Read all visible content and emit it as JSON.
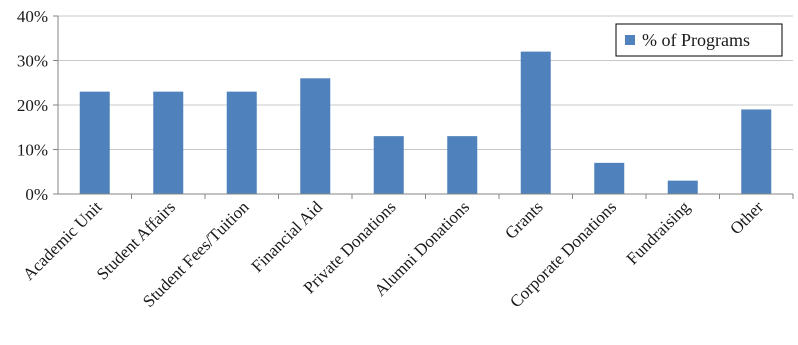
{
  "chart_data": {
    "type": "bar",
    "title": "",
    "xlabel": "",
    "ylabel": "",
    "categories": [
      "Academic Unit",
      "Student Affairs",
      "Student Fees/Tuition",
      "Financial Aid",
      "Private Donations",
      "Alumni Donations",
      "Grants",
      "Corporate Donations",
      "Fundraising",
      "Other"
    ],
    "series": [
      {
        "name": "% of Programs",
        "values": [
          23,
          23,
          23,
          26,
          13,
          13,
          32,
          7,
          3,
          19
        ],
        "color": "#4f81bd"
      }
    ],
    "ylim": [
      0,
      40
    ],
    "yticks": [
      0,
      10,
      20,
      30,
      40
    ],
    "ytick_labels": [
      "0%",
      "10%",
      "20%",
      "30%",
      "40%"
    ],
    "y_unit": "%",
    "grid": true,
    "legend_position": "top-right"
  }
}
